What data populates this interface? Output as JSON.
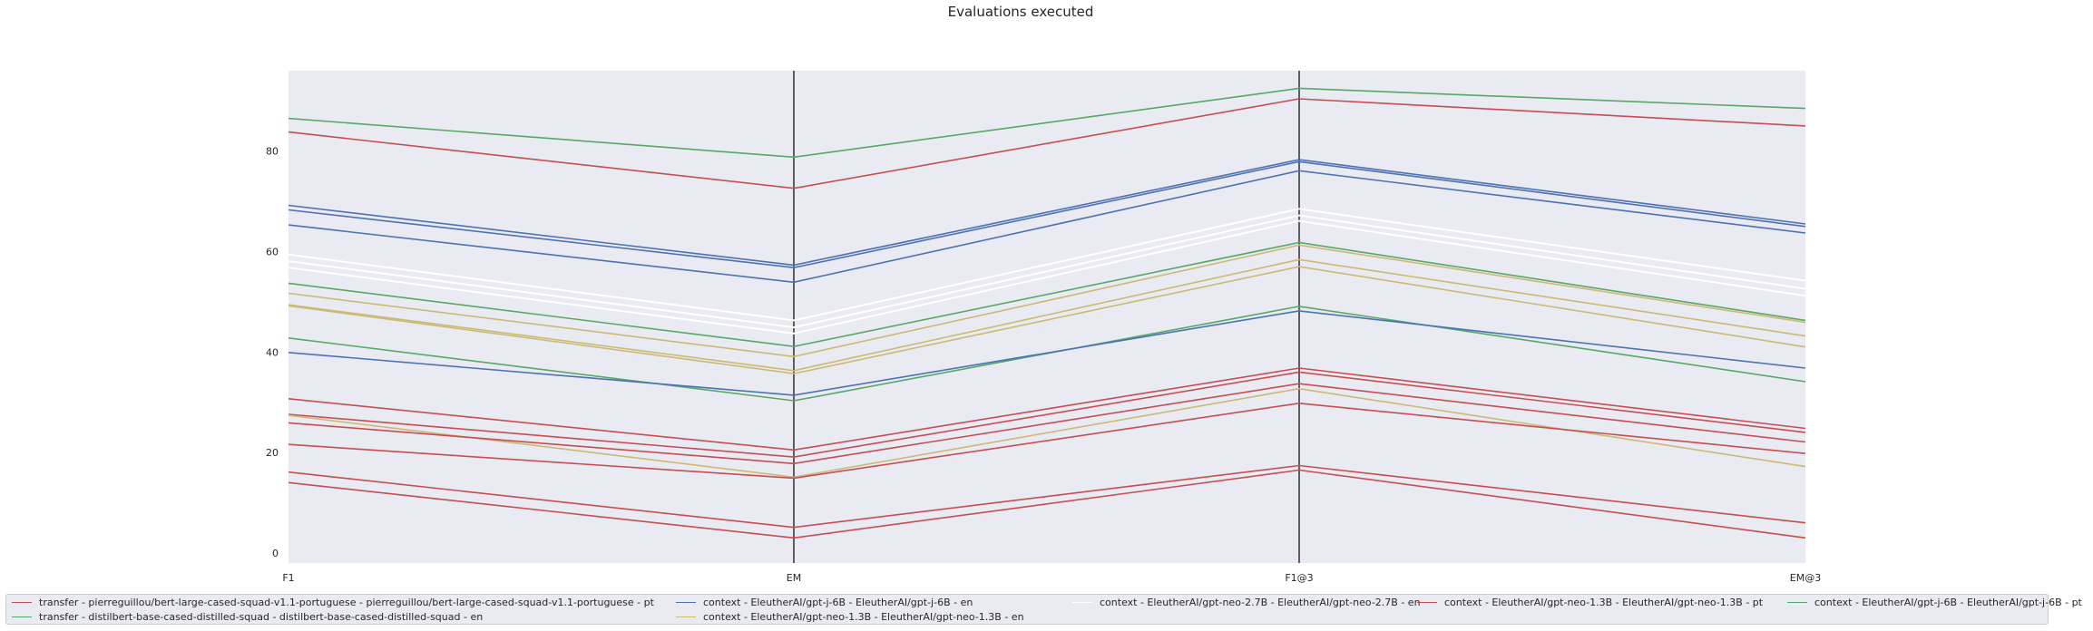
{
  "chart_data": {
    "type": "line",
    "title": "Evaluations executed",
    "categories": [
      "F1",
      "EM",
      "F1@3",
      "EM@3"
    ],
    "ylim": [
      -2,
      96
    ],
    "yticks": [
      0,
      20,
      40,
      60,
      80
    ],
    "grid": false,
    "legend_placement": "bottom",
    "background": "#eaeaf2",
    "legend_entries": [
      {
        "label": "transfer - pierreguillou/bert-large-cased-squad-v1.1-portuguese - pierreguillou/bert-large-cased-squad-v1.1-portuguese - pt",
        "color": "#c44e52"
      },
      {
        "label": "transfer - distilbert-base-cased-distilled-squad - distilbert-base-cased-distilled-squad - en",
        "color": "#55a868"
      },
      {
        "label": "context - EleutherAI/gpt-j-6B - EleutherAI/gpt-j-6B - en",
        "color": "#4c72b0"
      },
      {
        "label": "context - EleutherAI/gpt-neo-1.3B - EleutherAI/gpt-neo-1.3B - en",
        "color": "#ccb974"
      },
      {
        "label": "context - EleutherAI/gpt-neo-2.7B - EleutherAI/gpt-neo-2.7B - en",
        "color": "#ffffff"
      },
      {
        "label": "context - EleutherAI/gpt-neo-1.3B - EleutherAI/gpt-neo-1.3B - pt",
        "color": "#c44e52"
      },
      {
        "label": "context - EleutherAI/gpt-j-6B - EleutherAI/gpt-j-6B - pt",
        "color": "#55a868"
      }
    ],
    "series": [
      {
        "color": "#55a868",
        "values": [
          86.5,
          78.8,
          92.5,
          88.5
        ]
      },
      {
        "color": "#c44e52",
        "values": [
          83.8,
          72.6,
          90.4,
          85.0
        ]
      },
      {
        "color": "#4c72b0",
        "values": [
          69.2,
          57.3,
          78.3,
          65.5
        ]
      },
      {
        "color": "#4c72b0",
        "values": [
          68.3,
          56.8,
          77.9,
          65.0
        ]
      },
      {
        "color": "#4c72b0",
        "values": [
          65.3,
          53.9,
          76.1,
          63.7
        ]
      },
      {
        "color": "#ffffff",
        "values": [
          59.4,
          46.3,
          68.5,
          54.2
        ]
      },
      {
        "color": "#ffffff",
        "values": [
          58.1,
          44.9,
          67.2,
          52.6
        ]
      },
      {
        "color": "#ffffff",
        "values": [
          56.8,
          43.7,
          66.1,
          51.2
        ]
      },
      {
        "color": "#55a868",
        "values": [
          53.7,
          41.1,
          61.8,
          46.3
        ]
      },
      {
        "color": "#ccb974",
        "values": [
          51.7,
          39.1,
          61.3,
          45.9
        ]
      },
      {
        "color": "#ccb974",
        "values": [
          49.4,
          36.3,
          58.4,
          43.2
        ]
      },
      {
        "color": "#ccb974",
        "values": [
          49.2,
          35.7,
          57.0,
          41.0
        ]
      },
      {
        "color": "#55a868",
        "values": [
          42.8,
          30.3,
          49.1,
          34.1
        ]
      },
      {
        "color": "#4c72b0",
        "values": [
          39.9,
          31.4,
          48.2,
          36.8
        ]
      },
      {
        "color": "#c44e52",
        "values": [
          30.7,
          20.5,
          36.8,
          24.8
        ]
      },
      {
        "color": "#c44e52",
        "values": [
          27.6,
          19.1,
          36.0,
          24.0
        ]
      },
      {
        "color": "#ccb974",
        "values": [
          27.4,
          15.1,
          32.7,
          17.2
        ]
      },
      {
        "color": "#c44e52",
        "values": [
          25.9,
          17.8,
          33.7,
          22.1
        ]
      },
      {
        "color": "#c44e52",
        "values": [
          21.6,
          14.9,
          29.8,
          19.8
        ]
      },
      {
        "color": "#c44e52",
        "values": [
          16.1,
          5.1,
          17.4,
          6.0
        ]
      },
      {
        "color": "#c44e52",
        "values": [
          14.0,
          3.0,
          16.5,
          3.0
        ]
      }
    ]
  }
}
